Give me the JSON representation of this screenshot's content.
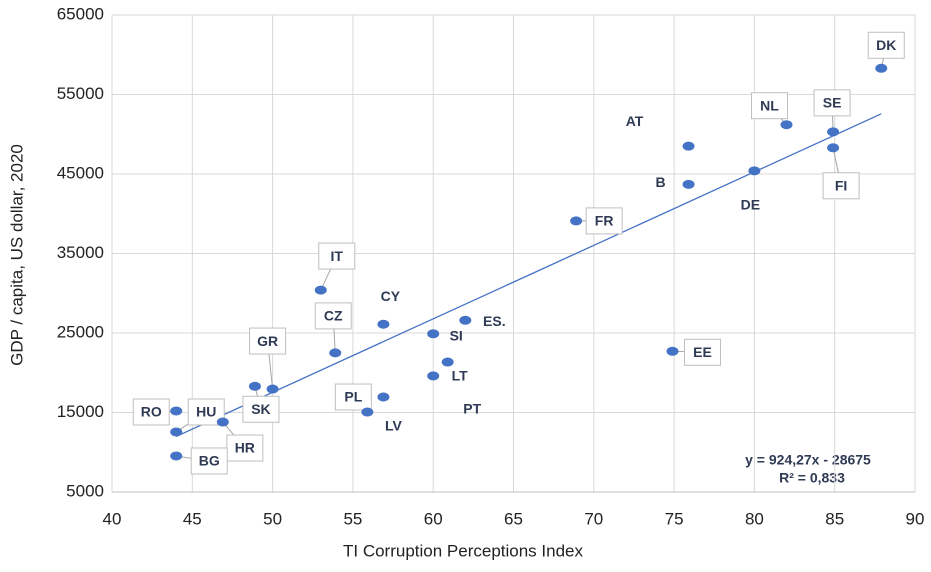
{
  "chart_data": {
    "type": "scatter",
    "x_label": "TI Corruption Perceptions Index",
    "y_label": "GDP / capita, US dollar, 2020",
    "xlim": [
      40,
      90
    ],
    "xticks": [
      40,
      45,
      50,
      55,
      60,
      65,
      70,
      75,
      80,
      85,
      90
    ],
    "ylim": [
      5000,
      65000
    ],
    "yticks": [
      5000,
      15000,
      25000,
      35000,
      45000,
      55000,
      65000
    ],
    "grid": true,
    "color": "#4472c4",
    "points": [
      {
        "label": "DK",
        "x": 87.9,
        "y": 58300
      },
      {
        "label": "SE",
        "x": 84.9,
        "y": 50300
      },
      {
        "label": "FI",
        "x": 84.9,
        "y": 48300
      },
      {
        "label": "NL",
        "x": 82,
        "y": 51200
      },
      {
        "label": "DE",
        "x": 80,
        "y": 45400
      },
      {
        "label": "AT",
        "x": 75.9,
        "y": 48500
      },
      {
        "label": "B",
        "x": 75.9,
        "y": 43700
      },
      {
        "label": "FR",
        "x": 68.9,
        "y": 39100
      },
      {
        "label": "EE",
        "x": 74.9,
        "y": 22700
      },
      {
        "label": "ES.",
        "x": 62,
        "y": 26600
      },
      {
        "label": "CY",
        "x": 56.9,
        "y": 26100
      },
      {
        "label": "SI",
        "x": 60,
        "y": 24900
      },
      {
        "label": "LT",
        "x": 60.9,
        "y": 21350
      },
      {
        "label": "PT",
        "x": 60,
        "y": 19600
      },
      {
        "label": "IT",
        "x": 53,
        "y": 30400
      },
      {
        "label": "CZ",
        "x": 53.9,
        "y": 22500
      },
      {
        "label": "GR",
        "x": 50,
        "y": 17950
      },
      {
        "label": "SK",
        "x": 48.9,
        "y": 18300
      },
      {
        "label": "PL",
        "x": 55.9,
        "y": 15060
      },
      {
        "label": "LV",
        "x": 56.9,
        "y": 16950
      },
      {
        "label": "RO",
        "x": 44,
        "y": 15190
      },
      {
        "label": "HU",
        "x": 44,
        "y": 12550
      },
      {
        "label": "HR",
        "x": 46.9,
        "y": 13800
      },
      {
        "label": "BG",
        "x": 44,
        "y": 9530
      }
    ],
    "trendline": {
      "slope": 924.27,
      "intercept": -28675,
      "color": "#4472c4"
    },
    "annotations": [
      "y = 924,27x - 28675",
      "R² = 0,833"
    ]
  }
}
